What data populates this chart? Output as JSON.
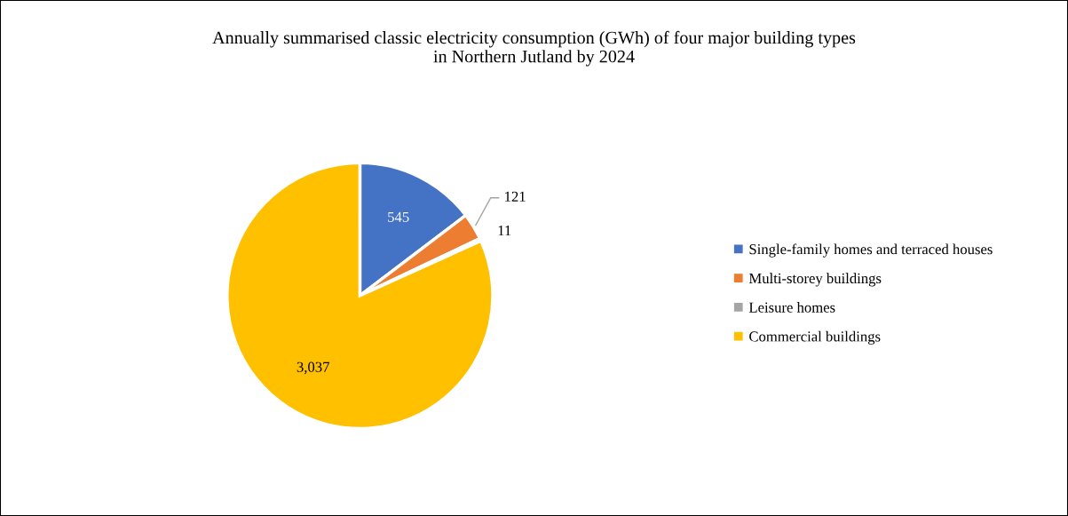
{
  "chart_data": {
    "type": "pie",
    "title": "Annually summarised classic electricity consumption (GWh) of four major building types\nin Northern Jutland by 2024",
    "categories": [
      "Single-family homes and terraced houses",
      "Multi-storey buildings",
      "Leisure homes",
      "Commercial buildings"
    ],
    "values": [
      545,
      121,
      11,
      3037
    ],
    "colors": [
      "#4472c4",
      "#ed7d31",
      "#a5a5a5",
      "#ffc000"
    ],
    "value_labels": [
      "545",
      "121",
      "11",
      "3,037"
    ],
    "legend": "right"
  }
}
